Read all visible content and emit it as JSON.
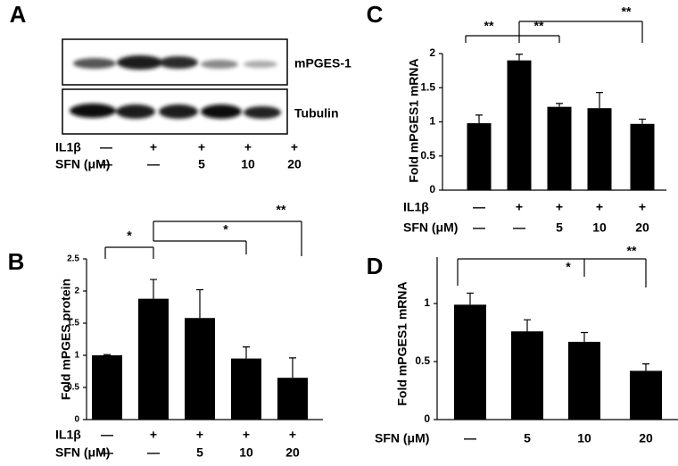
{
  "blot": {
    "panel": "A",
    "bands": [
      "mPGES-1",
      "Tubulin"
    ],
    "x_label_rows": [
      {
        "label": "IL1β",
        "labels": [
          "—",
          "+",
          "+",
          "+",
          "+"
        ]
      },
      {
        "label": "SFN (μM)",
        "labels": [
          "—",
          "—",
          "5",
          "10",
          "20"
        ]
      }
    ]
  },
  "chart_data": [
    {
      "type": "bar",
      "panel": "B",
      "y_label": "Fold mPGES protein",
      "color": "#000000",
      "x_label_rows": [
        {
          "label": "IL1β",
          "labels": [
            "—",
            "+",
            "+",
            "+",
            "+"
          ]
        },
        {
          "label": "SFN (μM)",
          "labels": [
            "—",
            "—",
            "5",
            "10",
            "20"
          ]
        }
      ],
      "values": [
        1.0,
        1.88,
        1.58,
        0.95,
        0.65
      ],
      "errors": [
        0.01,
        0.3,
        0.44,
        0.18,
        0.31
      ],
      "ylim": [
        0,
        2.5
      ],
      "yticks": [
        0,
        0.5,
        1,
        1.5,
        2,
        2.5
      ],
      "annotations": [
        "*",
        "*",
        "**"
      ]
    },
    {
      "type": "bar",
      "panel": "C",
      "y_label": "Fold mPGES1 mRNA",
      "color": "#000000",
      "x_label_rows": [
        {
          "label": "IL1β",
          "labels": [
            "—",
            "+",
            "+",
            "+",
            "+"
          ]
        },
        {
          "label": "SFN (μM)",
          "labels": [
            "—",
            "—",
            "5",
            "10",
            "20"
          ]
        }
      ],
      "values": [
        0.98,
        1.9,
        1.22,
        1.2,
        0.97
      ],
      "errors": [
        0.12,
        0.09,
        0.05,
        0.23,
        0.07
      ],
      "ylim": [
        0,
        2
      ],
      "yticks": [
        0,
        0.5,
        1,
        1.5,
        2
      ],
      "annotations": [
        "**",
        "**",
        "**"
      ]
    },
    {
      "type": "bar",
      "panel": "D",
      "y_label": "Fold mPGES1 mRNA",
      "color": "#000000",
      "x_label_rows": [
        {
          "label": "SFN (μM)",
          "labels": [
            "—",
            "5",
            "10",
            "20"
          ]
        }
      ],
      "values": [
        0.99,
        0.76,
        0.67,
        0.42
      ],
      "errors": [
        0.1,
        0.1,
        0.08,
        0.06
      ],
      "ylim": [
        0,
        1.4
      ],
      "yticks": [
        0,
        0.5,
        1
      ],
      "annotations": [
        "*",
        "**"
      ]
    }
  ]
}
